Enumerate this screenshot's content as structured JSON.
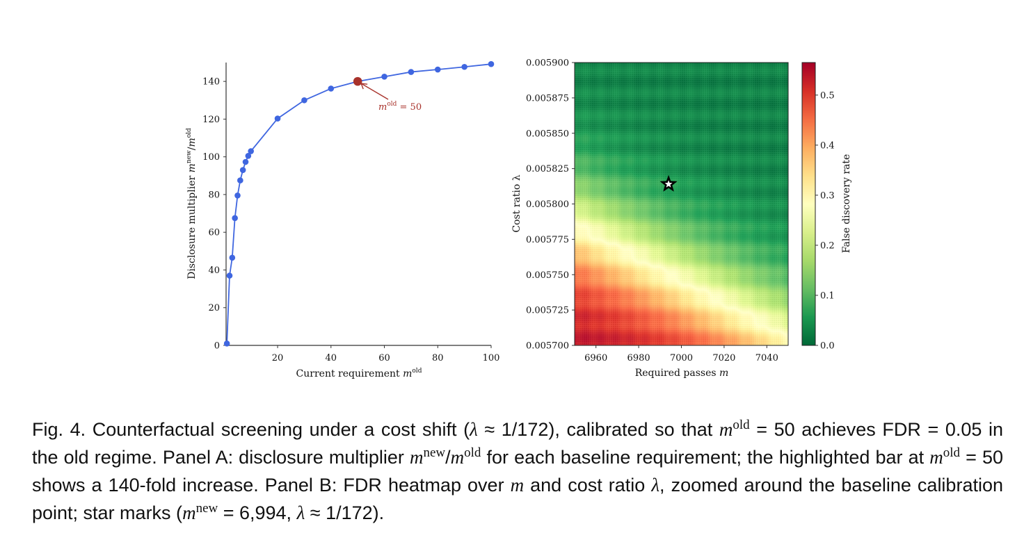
{
  "chart_data": [
    {
      "panel": "A",
      "type": "line",
      "title": "",
      "xlabel": "Current requirement m^old",
      "xlabel_main": "Current requirement ",
      "xlabel_var": "m",
      "xlabel_sup": "old",
      "ylabel": "Disclosure multiplier m^new/m^old",
      "ylabel_main": "Disclosure multiplier ",
      "ylabel_var1": "m",
      "ylabel_sup1": "new",
      "ylabel_slash": "/",
      "ylabel_var2": "m",
      "ylabel_sup2": "old",
      "xlim": [
        0.7,
        100
      ],
      "ylim": [
        0,
        150
      ],
      "xticks": [
        20,
        40,
        60,
        80,
        100
      ],
      "xtick_labels": [
        "20",
        "40",
        "60",
        "80",
        "100"
      ],
      "yticks": [
        0,
        20,
        40,
        60,
        80,
        100,
        120,
        140
      ],
      "ytick_labels": [
        "0",
        "20",
        "40",
        "60",
        "80",
        "100",
        "120",
        "140"
      ],
      "grid": false,
      "series": [
        {
          "name": "multiplier",
          "color": "#3f66e0",
          "marker": "circle",
          "x": [
            1,
            2,
            3,
            4,
            5,
            6,
            7,
            8,
            9,
            10,
            20,
            30,
            40,
            50,
            60,
            70,
            80,
            90,
            100
          ],
          "y": [
            1,
            37,
            46.5,
            67.5,
            79.5,
            87.5,
            93,
            97.3,
            100.5,
            103,
            120.3,
            130,
            136.2,
            140,
            142.5,
            145,
            146.3,
            147.7,
            149.2
          ]
        }
      ],
      "highlight": {
        "x": 50,
        "y": 140,
        "color": "#a8322b"
      },
      "annotation": {
        "text_var": "m",
        "text_sup": "old",
        "text_rest": " = 50",
        "text": "m^old = 50",
        "color": "#a8322b",
        "points_to": [
          50,
          140
        ]
      }
    },
    {
      "panel": "B",
      "type": "heatmap",
      "title": "",
      "xlabel": "Required passes m",
      "xlabel_main": "Required passes ",
      "xlabel_var": "m",
      "ylabel": "Cost ratio λ",
      "xlim": [
        6950,
        7050
      ],
      "ylim": [
        0.0057,
        0.0059
      ],
      "xticks": [
        6960,
        6980,
        7000,
        7020,
        7040
      ],
      "xtick_labels": [
        "6960",
        "6980",
        "7000",
        "7020",
        "7040"
      ],
      "yticks": [
        0.0057,
        0.005725,
        0.00575,
        0.005775,
        0.0058,
        0.005825,
        0.00585,
        0.005875,
        0.0059
      ],
      "ytick_labels": [
        "0.005700",
        "0.005725",
        "0.005750",
        "0.005775",
        "0.005800",
        "0.005825",
        "0.005850",
        "0.005875",
        "0.005900"
      ],
      "colormap": "RdYlGn_r",
      "colormap_stops": [
        "#006837",
        "#1a9850",
        "#66bd63",
        "#a6d96a",
        "#d9ef8b",
        "#ffffbf",
        "#fee08b",
        "#fdae61",
        "#f46d43",
        "#d73027",
        "#a50026"
      ],
      "value_range": [
        0.0,
        0.565
      ],
      "fdr_0_3_contour": {
        "m": [
          6950,
          7050
        ],
        "lambda": [
          0.005782,
          0.005703
        ]
      },
      "max_fdr_region": {
        "m": 6958,
        "lambda": 0.005712,
        "fdr": 0.55
      },
      "min_fdr_region": "top (λ ≥ 0.00585), FDR ≈ 0.02",
      "marker": {
        "type": "star",
        "m": 6994,
        "lambda": 0.005814
      },
      "colorbar": {
        "label": "False discovery rate",
        "ticks": [
          0.0,
          0.1,
          0.2,
          0.3,
          0.4,
          0.5
        ],
        "tick_labels": [
          "0.0",
          "0.1",
          "0.2",
          "0.3",
          "0.4",
          "0.5"
        ],
        "placement": "right"
      }
    }
  ],
  "caption": {
    "parts": [
      "Fig. 4.  Counterfactual screening under a cost shift (",
      "λ",
      " ≈ 1/172), calibrated so that ",
      "m",
      "old",
      " = 50 achieves FDR = 0.05 in the old regime. Panel A: disclosure multiplier ",
      "m",
      "new",
      "/",
      "m",
      "old",
      " for each baseline requirement; the highlighted bar at ",
      "m",
      "old",
      " = 50 shows a 140-fold increase. Panel B: FDR heatmap over ",
      "m",
      " and cost ratio ",
      "λ",
      ", zoomed around the baseline calibration point; star marks (",
      "m",
      "new",
      " = 6,994,  ",
      "λ",
      " ≈ 1/172)."
    ]
  }
}
